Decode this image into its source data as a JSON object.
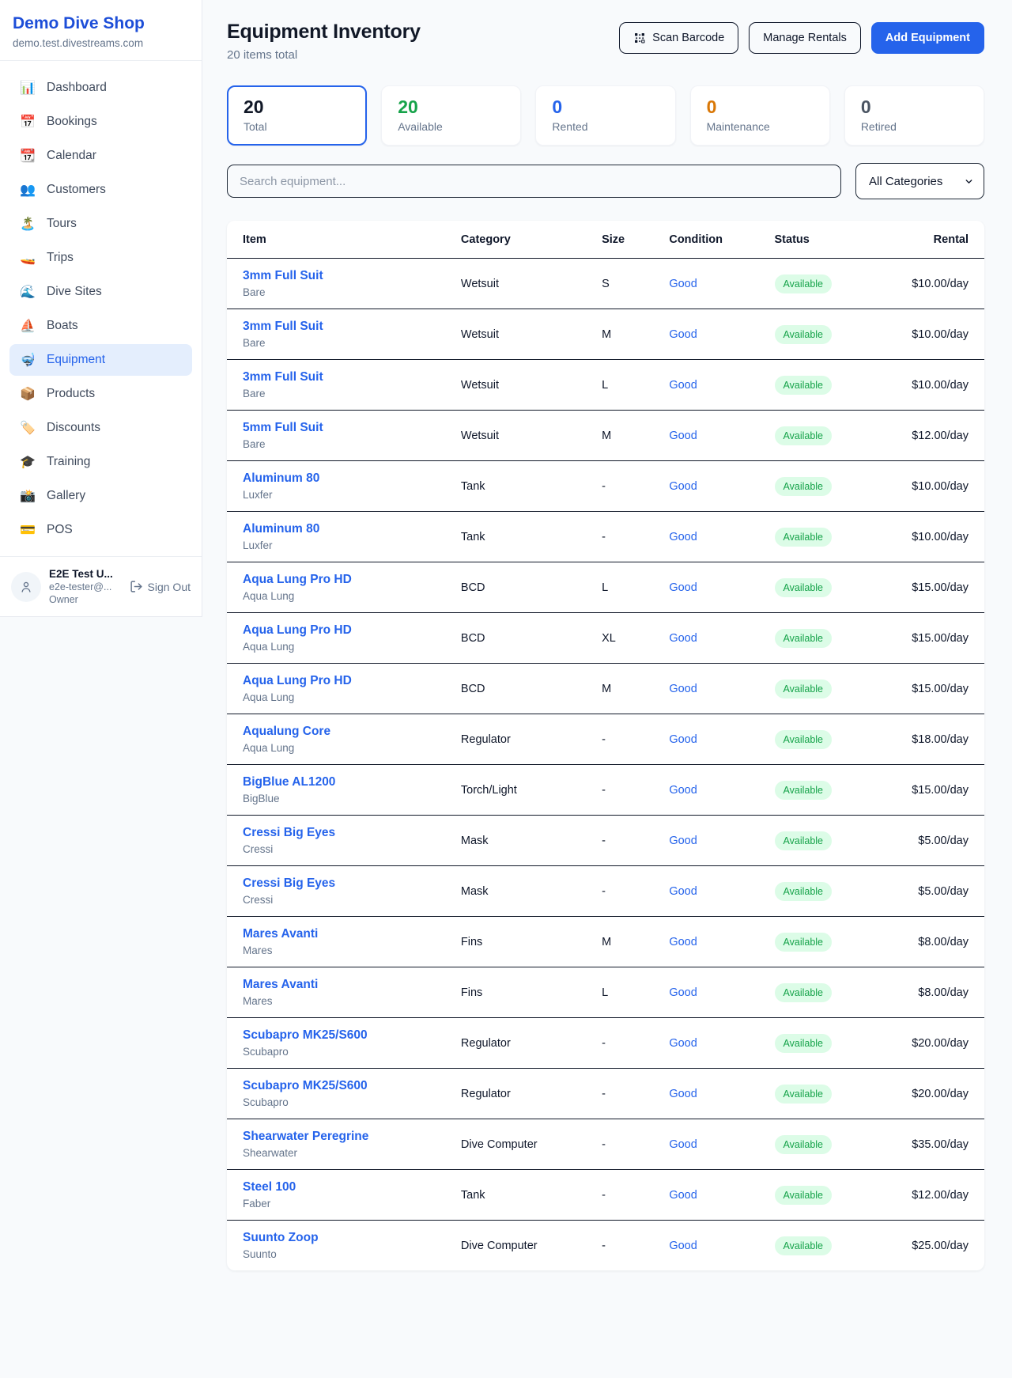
{
  "sidebar": {
    "brand": {
      "name": "Demo Dive Shop",
      "domain": "demo.test.divestreams.com"
    },
    "nav": [
      {
        "id": "dashboard",
        "icon": "📊",
        "label": "Dashboard",
        "active": false
      },
      {
        "id": "bookings",
        "icon": "📅",
        "label": "Bookings",
        "active": false
      },
      {
        "id": "calendar",
        "icon": "📆",
        "label": "Calendar",
        "active": false
      },
      {
        "id": "customers",
        "icon": "👥",
        "label": "Customers",
        "active": false
      },
      {
        "id": "tours",
        "icon": "🏝️",
        "label": "Tours",
        "active": false
      },
      {
        "id": "trips",
        "icon": "🚤",
        "label": "Trips",
        "active": false
      },
      {
        "id": "dive-sites",
        "icon": "🌊",
        "label": "Dive Sites",
        "active": false
      },
      {
        "id": "boats",
        "icon": "⛵",
        "label": "Boats",
        "active": false
      },
      {
        "id": "equipment",
        "icon": "🤿",
        "label": "Equipment",
        "active": true
      },
      {
        "id": "products",
        "icon": "📦",
        "label": "Products",
        "active": false
      },
      {
        "id": "discounts",
        "icon": "🏷️",
        "label": "Discounts",
        "active": false
      },
      {
        "id": "training",
        "icon": "🎓",
        "label": "Training",
        "active": false
      },
      {
        "id": "gallery",
        "icon": "📸",
        "label": "Gallery",
        "active": false
      },
      {
        "id": "pos",
        "icon": "💳",
        "label": "POS",
        "active": false
      }
    ],
    "user": {
      "name": "E2E Test U...",
      "email": "e2e-tester@...",
      "role": "Owner",
      "sign_out": "Sign Out"
    }
  },
  "header": {
    "title": "Equipment Inventory",
    "subtitle": "20 items total",
    "buttons": {
      "scan": "Scan Barcode",
      "manage": "Manage Rentals",
      "add": "Add Equipment"
    }
  },
  "stats": [
    {
      "value": "20",
      "label": "Total",
      "color": "#111827",
      "selected": true
    },
    {
      "value": "20",
      "label": "Available",
      "color": "#16a34a",
      "selected": false
    },
    {
      "value": "0",
      "label": "Rented",
      "color": "#2563eb",
      "selected": false
    },
    {
      "value": "0",
      "label": "Maintenance",
      "color": "#d97706",
      "selected": false
    },
    {
      "value": "0",
      "label": "Retired",
      "color": "#4b5563",
      "selected": false
    }
  ],
  "filters": {
    "search_placeholder": "Search equipment...",
    "category_selected": "All Categories"
  },
  "table": {
    "columns": [
      "Item",
      "Category",
      "Size",
      "Condition",
      "Status",
      "Rental"
    ],
    "rows": [
      {
        "name": "3mm Full Suit",
        "brand": "Bare",
        "category": "Wetsuit",
        "size": "S",
        "condition": "Good",
        "status": "Available",
        "rental": "$10.00/day"
      },
      {
        "name": "3mm Full Suit",
        "brand": "Bare",
        "category": "Wetsuit",
        "size": "M",
        "condition": "Good",
        "status": "Available",
        "rental": "$10.00/day"
      },
      {
        "name": "3mm Full Suit",
        "brand": "Bare",
        "category": "Wetsuit",
        "size": "L",
        "condition": "Good",
        "status": "Available",
        "rental": "$10.00/day"
      },
      {
        "name": "5mm Full Suit",
        "brand": "Bare",
        "category": "Wetsuit",
        "size": "M",
        "condition": "Good",
        "status": "Available",
        "rental": "$12.00/day"
      },
      {
        "name": "Aluminum 80",
        "brand": "Luxfer",
        "category": "Tank",
        "size": "-",
        "condition": "Good",
        "status": "Available",
        "rental": "$10.00/day"
      },
      {
        "name": "Aluminum 80",
        "brand": "Luxfer",
        "category": "Tank",
        "size": "-",
        "condition": "Good",
        "status": "Available",
        "rental": "$10.00/day"
      },
      {
        "name": "Aqua Lung Pro HD",
        "brand": "Aqua Lung",
        "category": "BCD",
        "size": "L",
        "condition": "Good",
        "status": "Available",
        "rental": "$15.00/day"
      },
      {
        "name": "Aqua Lung Pro HD",
        "brand": "Aqua Lung",
        "category": "BCD",
        "size": "XL",
        "condition": "Good",
        "status": "Available",
        "rental": "$15.00/day"
      },
      {
        "name": "Aqua Lung Pro HD",
        "brand": "Aqua Lung",
        "category": "BCD",
        "size": "M",
        "condition": "Good",
        "status": "Available",
        "rental": "$15.00/day"
      },
      {
        "name": "Aqualung Core",
        "brand": "Aqua Lung",
        "category": "Regulator",
        "size": "-",
        "condition": "Good",
        "status": "Available",
        "rental": "$18.00/day"
      },
      {
        "name": "BigBlue AL1200",
        "brand": "BigBlue",
        "category": "Torch/Light",
        "size": "-",
        "condition": "Good",
        "status": "Available",
        "rental": "$15.00/day"
      },
      {
        "name": "Cressi Big Eyes",
        "brand": "Cressi",
        "category": "Mask",
        "size": "-",
        "condition": "Good",
        "status": "Available",
        "rental": "$5.00/day"
      },
      {
        "name": "Cressi Big Eyes",
        "brand": "Cressi",
        "category": "Mask",
        "size": "-",
        "condition": "Good",
        "status": "Available",
        "rental": "$5.00/day"
      },
      {
        "name": "Mares Avanti",
        "brand": "Mares",
        "category": "Fins",
        "size": "M",
        "condition": "Good",
        "status": "Available",
        "rental": "$8.00/day"
      },
      {
        "name": "Mares Avanti",
        "brand": "Mares",
        "category": "Fins",
        "size": "L",
        "condition": "Good",
        "status": "Available",
        "rental": "$8.00/day"
      },
      {
        "name": "Scubapro MK25/S600",
        "brand": "Scubapro",
        "category": "Regulator",
        "size": "-",
        "condition": "Good",
        "status": "Available",
        "rental": "$20.00/day"
      },
      {
        "name": "Scubapro MK25/S600",
        "brand": "Scubapro",
        "category": "Regulator",
        "size": "-",
        "condition": "Good",
        "status": "Available",
        "rental": "$20.00/day"
      },
      {
        "name": "Shearwater Peregrine",
        "brand": "Shearwater",
        "category": "Dive Computer",
        "size": "-",
        "condition": "Good",
        "status": "Available",
        "rental": "$35.00/day"
      },
      {
        "name": "Steel 100",
        "brand": "Faber",
        "category": "Tank",
        "size": "-",
        "condition": "Good",
        "status": "Available",
        "rental": "$12.00/day"
      },
      {
        "name": "Suunto Zoop",
        "brand": "Suunto",
        "category": "Dive Computer",
        "size": "-",
        "condition": "Good",
        "status": "Available",
        "rental": "$25.00/day"
      }
    ],
    "status_badge_colors": {
      "text": "#16a34a",
      "background": "#dcfce7"
    }
  },
  "colors": {
    "accent_blue": "#2563eb",
    "brand_blue": "#1d4ed8",
    "page_background": "#f8fafc",
    "row_divider": "#101828"
  }
}
